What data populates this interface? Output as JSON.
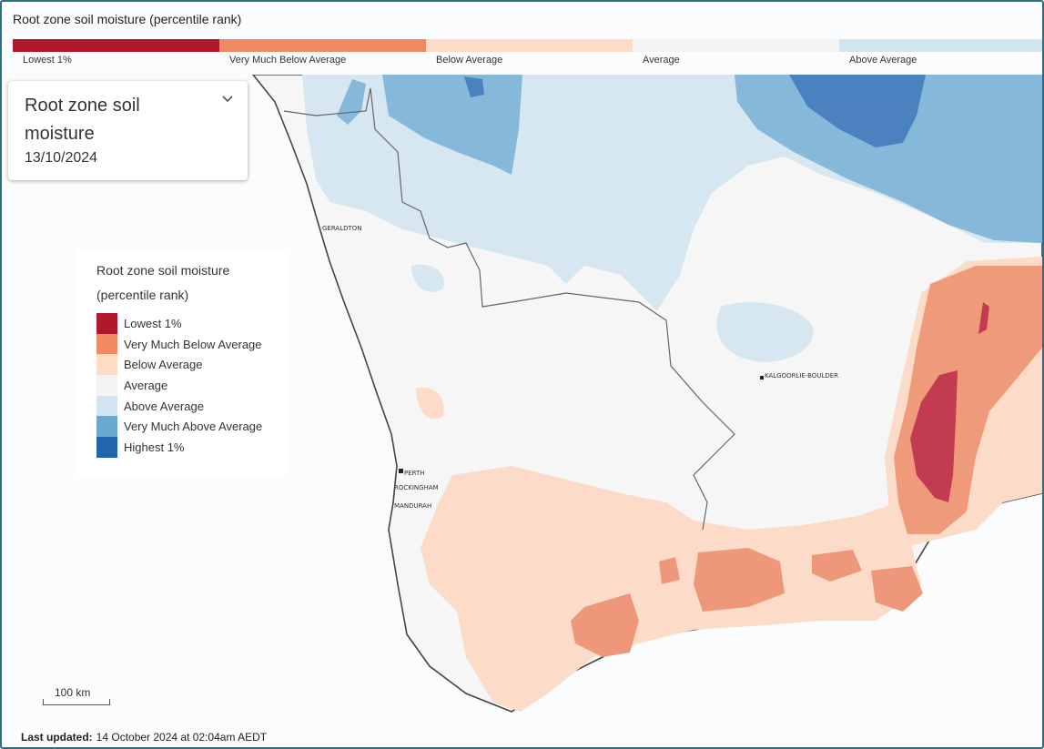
{
  "header": {
    "title": "Root zone soil moisture (percentile rank)",
    "scale": [
      {
        "label": "Lowest 1%",
        "color": "#b2182b"
      },
      {
        "label": "Very Much Below Average",
        "color": "#ef8a62"
      },
      {
        "label": "Below Average",
        "color": "#fddbc7"
      },
      {
        "label": "Average",
        "color": "#f4f4f4"
      },
      {
        "label": "Above Average",
        "color": "#d1e5f0"
      }
    ]
  },
  "panel": {
    "title": "Root zone soil moisture",
    "date": "13/10/2024"
  },
  "legend": {
    "title": "Root zone soil moisture (percentile rank)",
    "items": [
      {
        "label": "Lowest 1%",
        "color": "#b2182b"
      },
      {
        "label": "Very Much Below Average",
        "color": "#ef8a62"
      },
      {
        "label": "Below Average",
        "color": "#fddbc7"
      },
      {
        "label": "Average",
        "color": "#f4f4f4"
      },
      {
        "label": "Above Average",
        "color": "#d1e5f0"
      },
      {
        "label": "Very Much Above Average",
        "color": "#67a9cf"
      },
      {
        "label": "Highest 1%",
        "color": "#2166ac"
      }
    ]
  },
  "places": [
    {
      "label": "GERALDTON"
    },
    {
      "label": "KALGOORLIE-BOULDER"
    },
    {
      "label": "PERTH"
    },
    {
      "label": "ROCKINGHAM"
    },
    {
      "label": "MANDURAH"
    }
  ],
  "scale_bar": "100 km",
  "footer": {
    "label": "Last updated:",
    "text": "14 October 2024 at 02:04am AEDT"
  }
}
